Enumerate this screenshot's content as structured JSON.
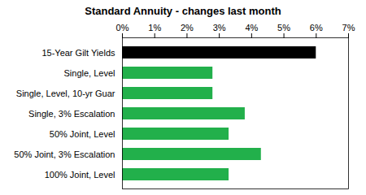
{
  "chart_data": {
    "type": "bar",
    "title": "Standard Annuity - changes last month",
    "orientation": "horizontal",
    "categories": [
      "15-Year Gilt Yields",
      "Single, Level",
      "Single, Level, 10-yr Guar",
      "Single, 3% Escalation",
      "50% Joint, Level",
      "50% Joint, 3% Escalation",
      "100% Joint, Level"
    ],
    "values": [
      6.0,
      2.8,
      2.8,
      3.8,
      3.3,
      4.3,
      3.3
    ],
    "colors": [
      "#000000",
      "#22b04b",
      "#22b04b",
      "#22b04b",
      "#22b04b",
      "#22b04b",
      "#22b04b"
    ],
    "xlim": [
      0,
      7
    ],
    "xticks": [
      {
        "value": 0,
        "label": "0%"
      },
      {
        "value": 1,
        "label": "1%"
      },
      {
        "value": 2,
        "label": "2%"
      },
      {
        "value": 3,
        "label": "3%"
      },
      {
        "value": 4,
        "label": "4%"
      },
      {
        "value": 5,
        "label": "5%"
      },
      {
        "value": 6,
        "label": "6%"
      },
      {
        "value": 7,
        "label": "7%"
      }
    ],
    "grid": false
  }
}
